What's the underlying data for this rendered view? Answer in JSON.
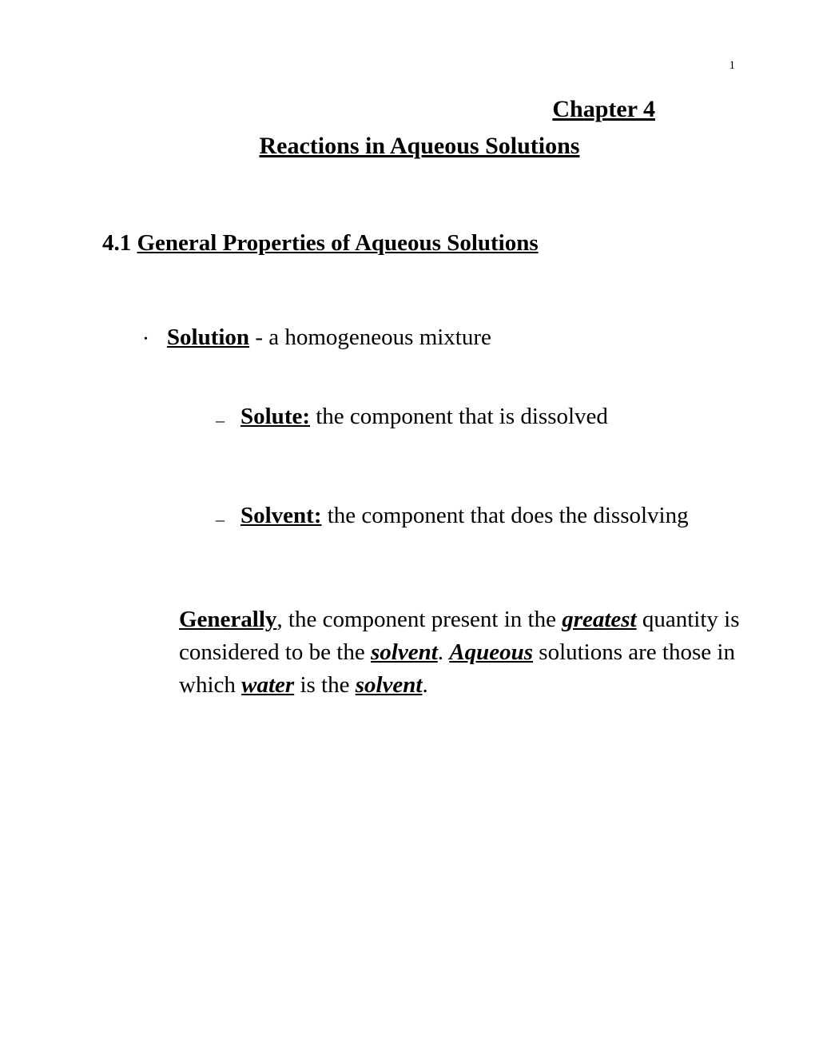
{
  "page_number": "1",
  "chapter_title": "Chapter 4",
  "subtitle": "Reactions in Aqueous Solutions",
  "section": {
    "number": "4.1",
    "title": "General Properties of Aqueous Solutions"
  },
  "bullet_solution": {
    "term": "Solution",
    "def": " - a homogeneous mixture"
  },
  "bullet_solute": {
    "term": "Solute:",
    "def": " the component that is dissolved"
  },
  "bullet_solvent": {
    "term": "Solvent:",
    "def": " the component that does the dissolving"
  },
  "paragraph": {
    "p1": "Generally",
    "p2": ", the component present in the ",
    "p3": "greatest",
    "p4": " quantity is considered to be the ",
    "p5": "solvent",
    "p6": ".  ",
    "p7": "Aqueous",
    "p8": " solutions are those in which ",
    "p9": "water",
    "p10": " is the ",
    "p11": "solvent",
    "p12": "."
  },
  "colors": {
    "text": "#000000",
    "background": "#ffffff"
  },
  "fonts": {
    "family": "Times New Roman",
    "body_size_pt": 22,
    "page_num_size_pt": 11
  }
}
